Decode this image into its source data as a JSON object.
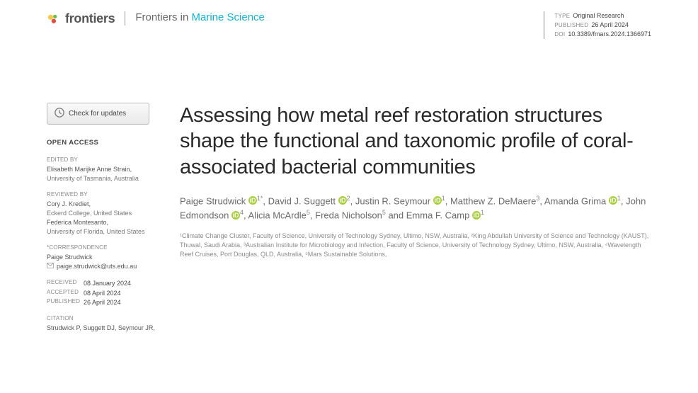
{
  "header": {
    "logo_text": "frontiers",
    "journal_prefix": "Frontiers in ",
    "journal_name": "Marine Science",
    "meta": {
      "type_label": "TYPE",
      "type_value": "Original Research",
      "published_label": "PUBLISHED",
      "published_value": "26 April 2024",
      "doi_label": "DOI",
      "doi_value": "10.3389/fmars.2024.1366971"
    }
  },
  "sidebar": {
    "check_updates": "Check for updates",
    "open_access": "OPEN ACCESS",
    "edited_by_label": "EDITED BY",
    "editor_name": "Elisabeth Marijke Anne Strain,",
    "editor_affil": "University of Tasmania, Australia",
    "reviewed_by_label": "REVIEWED BY",
    "reviewer1_name": "Cory J. Krediet,",
    "reviewer1_affil": "Eckerd College, United States",
    "reviewer2_name": "Federica Montesanto,",
    "reviewer2_affil": "University of Florida, United States",
    "correspondence_label": "*CORRESPONDENCE",
    "corr_name": "Paige Strudwick",
    "corr_email": "paige.strudwick@uts.edu.au",
    "received_label": "RECEIVED",
    "received_value": "08 January 2024",
    "accepted_label": "ACCEPTED",
    "accepted_value": "08 April 2024",
    "published_label": "PUBLISHED",
    "published_value": "26 April 2024",
    "citation_label": "CITATION",
    "citation_text": "Strudwick P, Suggett DJ, Seymour JR,"
  },
  "article": {
    "title": "Assessing how metal reef restoration structures shape the functional and taxonomic profile of coral-associated bacterial communities",
    "authors": [
      {
        "name": "Paige Strudwick",
        "sup": "1*",
        "orcid": true
      },
      {
        "name": "David J. Suggett",
        "sup": "2",
        "orcid": true
      },
      {
        "name": "Justin R. Seymour",
        "sup": "1",
        "orcid": true
      },
      {
        "name": "Matthew Z. DeMaere",
        "sup": "3",
        "orcid": false
      },
      {
        "name": "Amanda Grima",
        "sup": "1",
        "orcid": true
      },
      {
        "name": "John Edmondson",
        "sup": "4",
        "orcid": true
      },
      {
        "name": "Alicia McArdle",
        "sup": "5",
        "orcid": false
      },
      {
        "name": "Freda Nicholson",
        "sup": "5",
        "orcid": false
      },
      {
        "name": "Emma F. Camp",
        "sup": "1",
        "orcid": true
      }
    ],
    "affiliations": "¹Climate Change Cluster, Faculty of Science, University of Technology Sydney, Ultimo, NSW, Australia, ²King Abdullah University of Science and Technology (KAUST), Thuwal, Saudi Arabia, ³Australian Institute for Microbiology and Infection, Faculty of Science, University of Technology Sydney, Ultimo, NSW, Australia, ⁴Wavelength Reef Cruises, Port Douglas, QLD, Australia, ⁵Mars Sustainable Solutions,"
  }
}
